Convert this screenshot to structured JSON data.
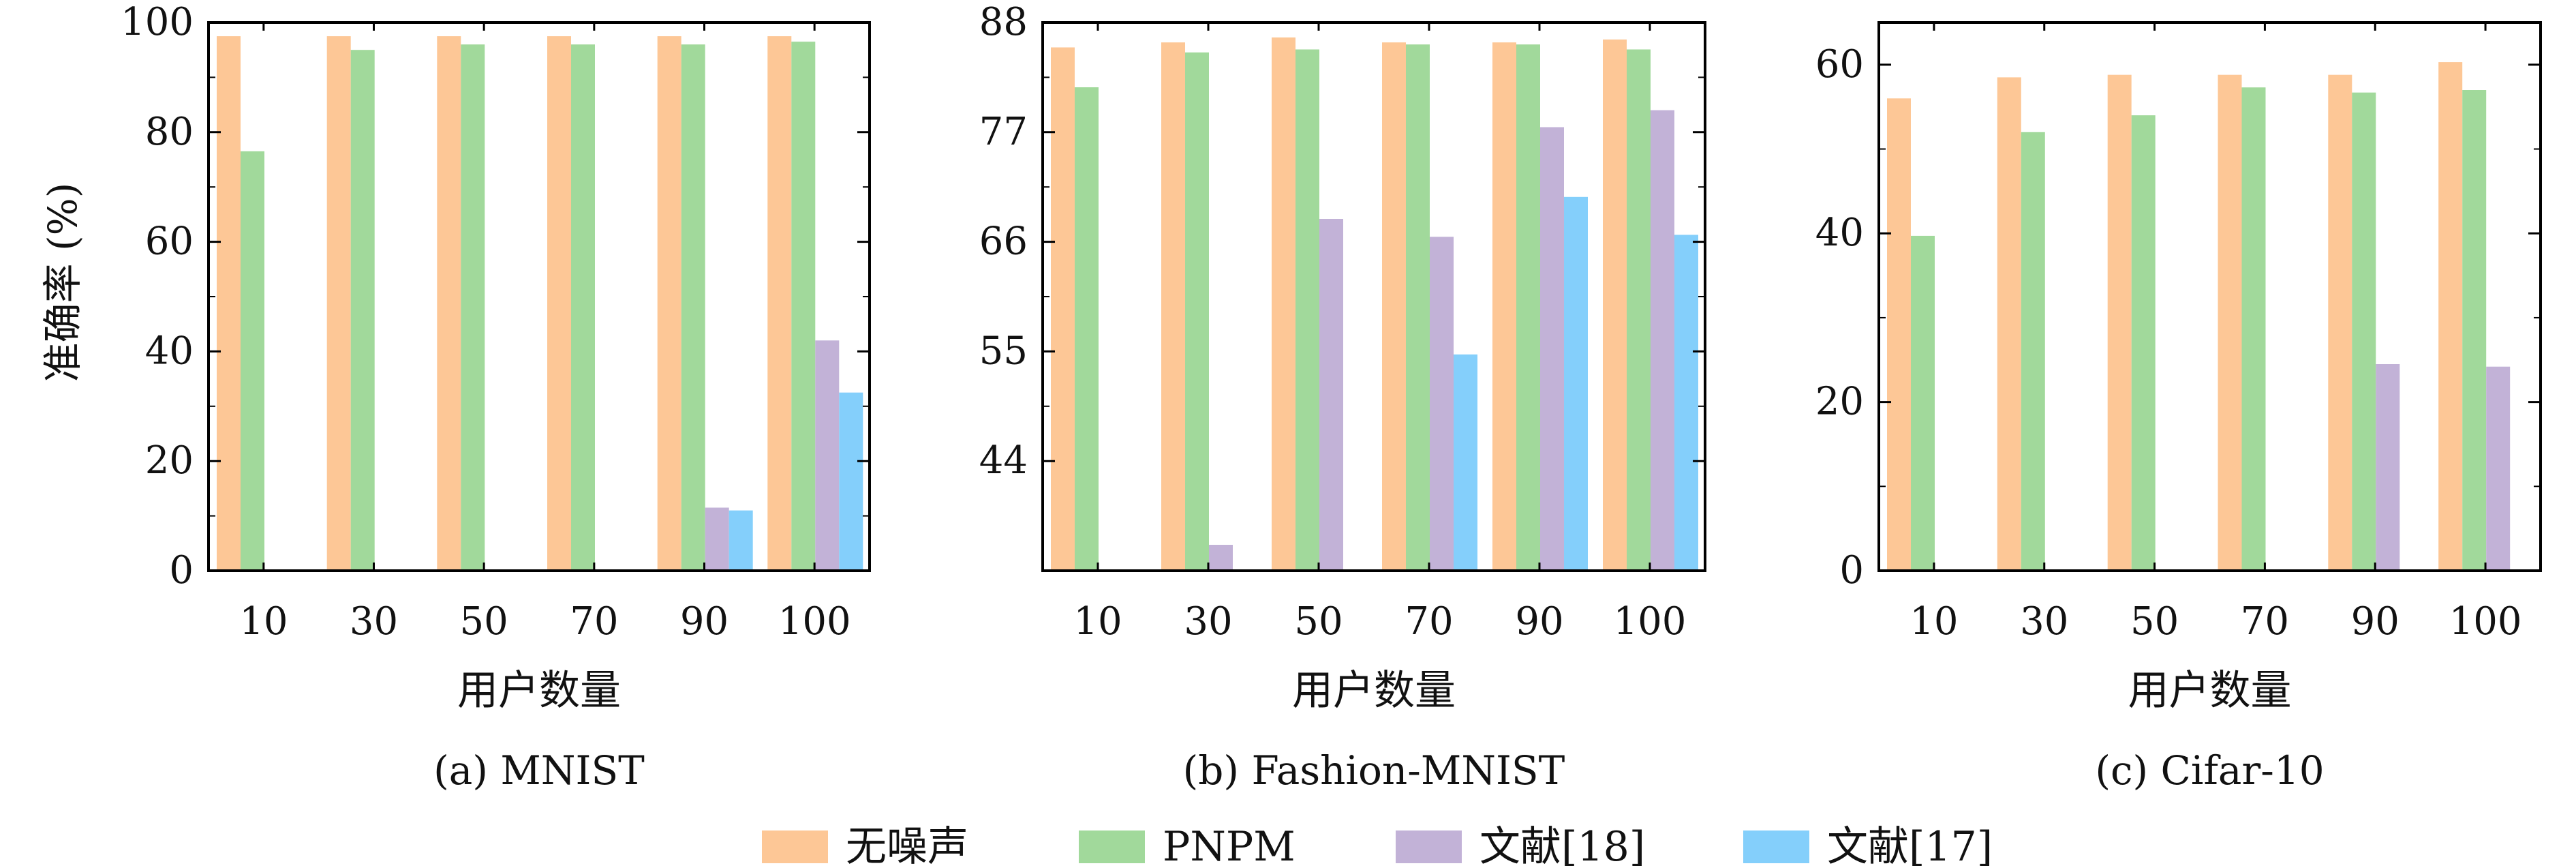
{
  "colors": {
    "无噪声": "#FDC796",
    "PNPM": "#A1D99B",
    "文献[18]": "#C2B2D7",
    "文献[17]": "#84CFFB"
  },
  "ylabel": "准确率 (%)",
  "xlabel": "用户数量",
  "legend": {
    "position": "bottom-center",
    "entries": [
      "无噪声",
      "PNPM",
      "文献[18]",
      "文献[17]"
    ]
  },
  "chart_data": [
    {
      "type": "bar",
      "caption": "(a) MNIST",
      "xlabel": "用户数量",
      "ylabel": "准确率 (%)",
      "categories": [
        "10",
        "30",
        "50",
        "70",
        "90",
        "100"
      ],
      "ylim": [
        0,
        100
      ],
      "yticks": [
        0,
        20,
        40,
        60,
        80,
        100
      ],
      "ytick_labels": [
        "0",
        "20",
        "40",
        "60",
        "80",
        "100"
      ],
      "series": [
        {
          "name": "无噪声",
          "values": [
            97.5,
            97.5,
            97.5,
            97.5,
            97.5,
            97.5
          ]
        },
        {
          "name": "PNPM",
          "values": [
            76.5,
            95,
            96,
            96,
            96,
            96.5
          ]
        },
        {
          "name": "文献[18]",
          "values": [
            null,
            null,
            null,
            null,
            11.5,
            42
          ]
        },
        {
          "name": "文献[17]",
          "values": [
            null,
            null,
            null,
            null,
            11,
            32.5
          ]
        }
      ]
    },
    {
      "type": "bar",
      "caption": "(b) Fashion-MNIST",
      "xlabel": "用户数量",
      "ylim": [
        33,
        88
      ],
      "yticks": [
        44,
        55,
        66,
        77,
        88
      ],
      "ytick_labels": [
        "44",
        "55",
        "66",
        "77",
        "88"
      ],
      "categories": [
        "10",
        "30",
        "50",
        "70",
        "90",
        "100"
      ],
      "series": [
        {
          "name": "无噪声",
          "values": [
            85.5,
            86,
            86.5,
            86,
            86,
            86.3
          ]
        },
        {
          "name": "PNPM",
          "values": [
            81.5,
            85,
            85.3,
            85.8,
            85.8,
            85.3
          ]
        },
        {
          "name": "文献[18]",
          "values": [
            null,
            35.6,
            68.3,
            66.5,
            77.5,
            79.2
          ]
        },
        {
          "name": "文献[17]",
          "values": [
            null,
            null,
            null,
            54.7,
            70.5,
            66.7
          ]
        }
      ]
    },
    {
      "type": "bar",
      "caption": "(c) Cifar-10",
      "xlabel": "用户数量",
      "ylim": [
        0,
        65
      ],
      "yticks": [
        0,
        20,
        40,
        60
      ],
      "ytick_labels": [
        "0",
        "20",
        "40",
        "60"
      ],
      "categories": [
        "10",
        "30",
        "50",
        "70",
        "90",
        "100"
      ],
      "series": [
        {
          "name": "无噪声",
          "values": [
            56,
            58.5,
            58.8,
            58.8,
            58.8,
            60.3
          ]
        },
        {
          "name": "PNPM",
          "values": [
            39.7,
            52,
            54,
            57.3,
            56.7,
            57
          ]
        },
        {
          "name": "文献[18]",
          "values": [
            null,
            null,
            null,
            null,
            24.5,
            24.2
          ]
        },
        {
          "name": "文献[17]",
          "values": [
            null,
            null,
            null,
            null,
            null,
            null
          ]
        }
      ]
    }
  ]
}
